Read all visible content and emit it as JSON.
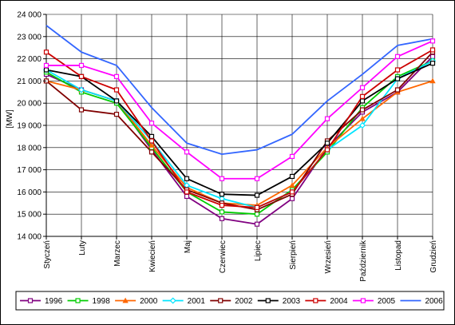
{
  "chart_data": {
    "type": "line",
    "title": "",
    "xlabel": "",
    "ylabel": "[MW]",
    "ylim": [
      14000,
      24000
    ],
    "yticks": [
      "14 000",
      "15 000",
      "16 000",
      "17 000",
      "18 000",
      "19 000",
      "20 000",
      "21 000",
      "22 000",
      "23 000",
      "24 000"
    ],
    "grid": true,
    "legend_position": "bottom",
    "categories": [
      "Styczeń",
      "Luty",
      "Marzec",
      "Kwiecień",
      "Maj",
      "Czerwiec",
      "Lipiec",
      "Sierpień",
      "Wrzesień",
      "Październik",
      "Listopad",
      "Grudzień"
    ],
    "series": [
      {
        "name": "1996",
        "color": "#800080",
        "marker": "square",
        "values": [
          21300,
          20600,
          20100,
          17900,
          15800,
          14800,
          14550,
          15700,
          18000,
          19600,
          20500,
          22100
        ]
      },
      {
        "name": "1998",
        "color": "#00cc00",
        "marker": "square",
        "values": [
          21400,
          20500,
          20000,
          18000,
          16000,
          15100,
          15000,
          16100,
          17800,
          19800,
          21200,
          21900
        ]
      },
      {
        "name": "2000",
        "color": "#ff6600",
        "marker": "triangle",
        "values": [
          21000,
          20600,
          20100,
          18100,
          16200,
          15500,
          15400,
          16300,
          18000,
          19300,
          20500,
          21000
        ]
      },
      {
        "name": "2001",
        "color": "#00e5ff",
        "marker": "diamond",
        "values": [
          21500,
          20600,
          20100,
          18300,
          16300,
          15700,
          15300,
          16000,
          17900,
          19000,
          21100,
          21900
        ]
      },
      {
        "name": "2002",
        "color": "#800000",
        "marker": "square",
        "values": [
          21000,
          19700,
          19500,
          17800,
          16100,
          15500,
          15200,
          15900,
          18300,
          19700,
          20600,
          22300
        ]
      },
      {
        "name": "2003",
        "color": "#000000",
        "marker": "square",
        "values": [
          21500,
          21200,
          20100,
          18500,
          16600,
          15900,
          15850,
          16700,
          18200,
          20100,
          21100,
          21800
        ]
      },
      {
        "name": "2004",
        "color": "#cc0000",
        "marker": "square",
        "values": [
          22300,
          21200,
          20600,
          18300,
          16000,
          15400,
          15300,
          16000,
          17900,
          20300,
          21500,
          22400
        ]
      },
      {
        "name": "2005",
        "color": "#ff00ff",
        "marker": "square",
        "values": [
          21700,
          21700,
          21200,
          19100,
          17800,
          16600,
          16600,
          17600,
          19300,
          20700,
          22100,
          22800
        ]
      },
      {
        "name": "2006",
        "color": "#3366ff",
        "marker": "none",
        "values": [
          23500,
          22300,
          21700,
          19800,
          18200,
          17700,
          17900,
          18600,
          20100,
          21300,
          22600,
          22900
        ]
      }
    ]
  }
}
